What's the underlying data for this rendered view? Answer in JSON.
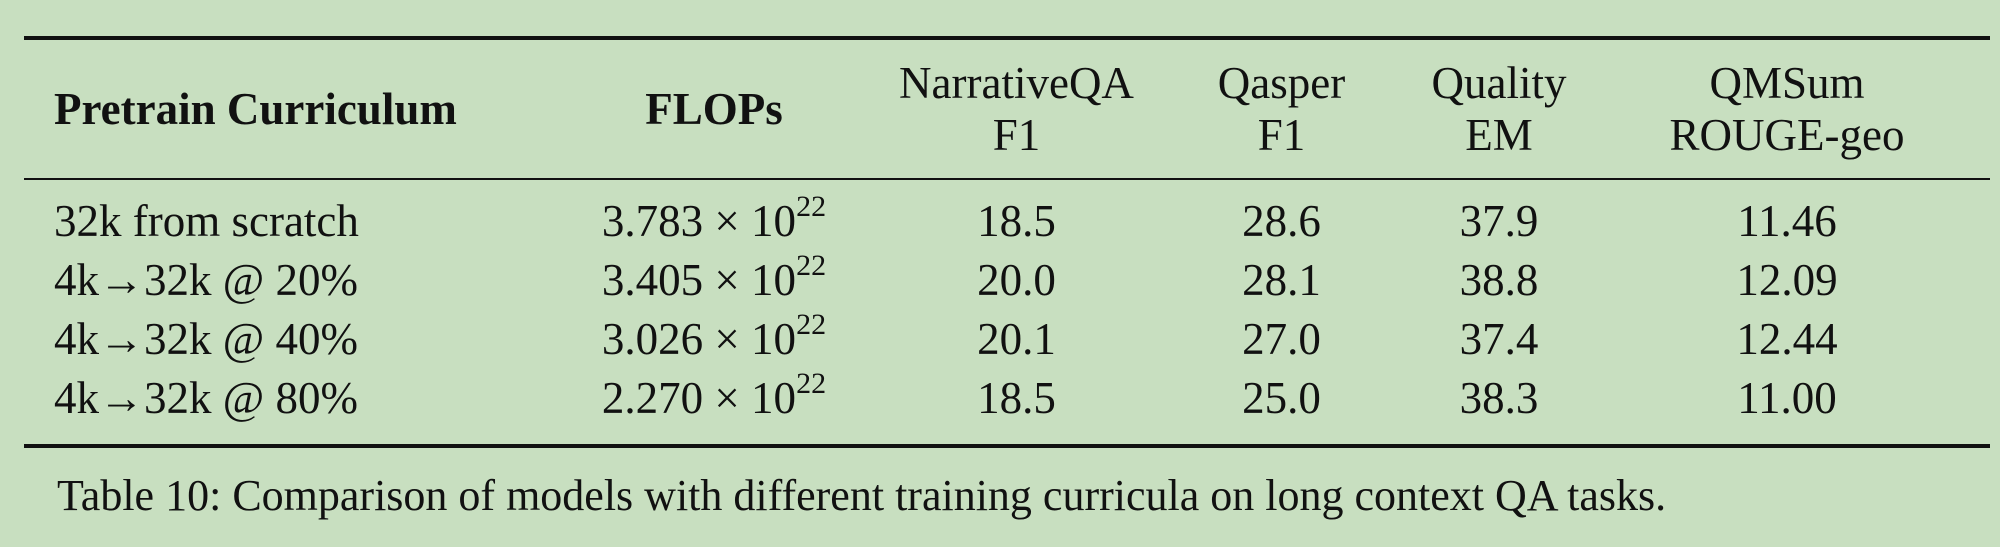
{
  "table": {
    "headers": [
      {
        "line1": "Pretrain Curriculum",
        "line2": "",
        "bold": true
      },
      {
        "line1": "FLOPs",
        "line2": "",
        "bold": true
      },
      {
        "line1": "NarrativeQA",
        "line2": "F1",
        "bold": false
      },
      {
        "line1": "Qasper",
        "line2": "F1",
        "bold": false
      },
      {
        "line1": "Quality",
        "line2": "EM",
        "bold": false
      },
      {
        "line1": "QMSum",
        "line2": "ROUGE-geo",
        "bold": false
      }
    ],
    "rows": [
      {
        "curriculum": "32k from scratch",
        "flops_mantissa": "3.783 × 10",
        "flops_exp": "22",
        "narrativeqa": "18.5",
        "qasper": "28.6",
        "quality": "37.9",
        "qmsum": "11.46"
      },
      {
        "curriculum": "4k→32k @ 20%",
        "flops_mantissa": "3.405 × 10",
        "flops_exp": "22",
        "narrativeqa": "20.0",
        "qasper": "28.1",
        "quality": "38.8",
        "qmsum": "12.09"
      },
      {
        "curriculum": "4k→32k @ 40%",
        "flops_mantissa": "3.026 × 10",
        "flops_exp": "22",
        "narrativeqa": "20.1",
        "qasper": "27.0",
        "quality": "37.4",
        "qmsum": "12.44"
      },
      {
        "curriculum": "4k→32k @ 80%",
        "flops_mantissa": "2.270 × 10",
        "flops_exp": "22",
        "narrativeqa": "18.5",
        "qasper": "25.0",
        "quality": "38.3",
        "qmsum": "11.00"
      }
    ]
  },
  "caption": "Table 10: Comparison of models with different training curricula on long context QA tasks."
}
